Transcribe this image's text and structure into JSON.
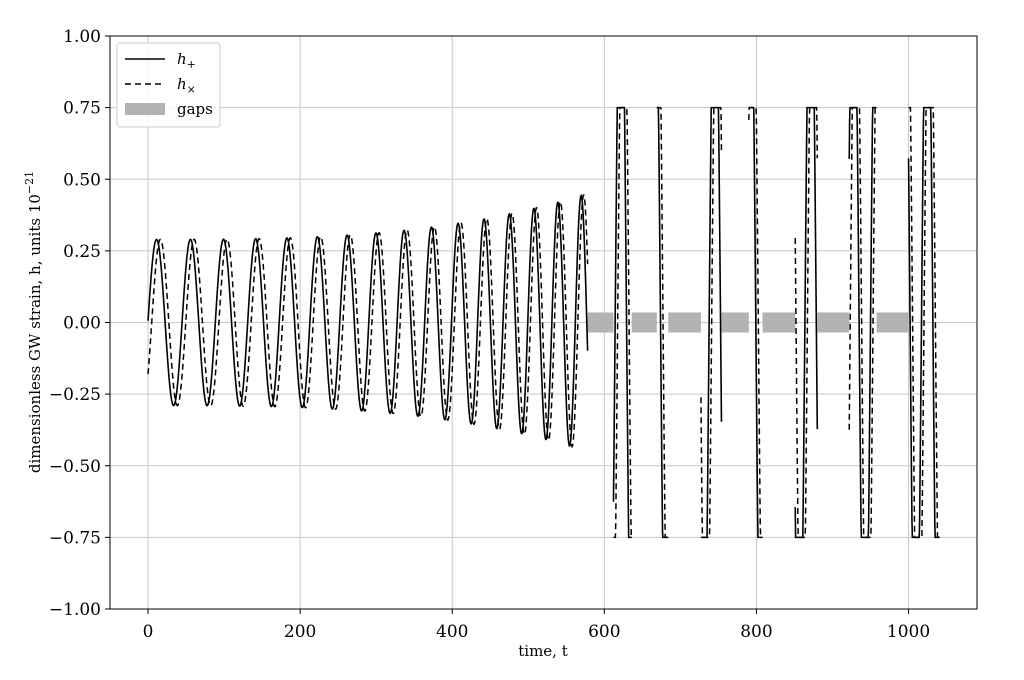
{
  "chart_data": {
    "type": "line",
    "xlabel": "time, t",
    "ylabel": "dimensionless GW strain, h, units 10",
    "ylabel_exponent": "−21",
    "xlim": [
      -50,
      1090
    ],
    "ylim": [
      -1.0,
      1.0
    ],
    "xticks": [
      0,
      200,
      400,
      600,
      800,
      1000
    ],
    "yticks": [
      -1.0,
      -0.75,
      -0.5,
      -0.25,
      0.0,
      0.25,
      0.5,
      0.75,
      1.0
    ],
    "xtick_labels": [
      "0",
      "200",
      "400",
      "600",
      "800",
      "1000"
    ],
    "ytick_labels": [
      "−1.00",
      "−0.75",
      "−0.50",
      "−0.25",
      "0.00",
      "0.25",
      "0.50",
      "0.75",
      "1.00"
    ],
    "grid": true,
    "legend_position": "top-left",
    "clip_range": [
      -0.75,
      0.75
    ],
    "legend": [
      {
        "label": "h",
        "sub": "+",
        "style": "solid"
      },
      {
        "label": "h",
        "sub": "×",
        "style": "dashed"
      },
      {
        "label": "gaps",
        "sub": "",
        "style": "band"
      }
    ],
    "colors": {
      "h_plus": "#000000",
      "h_cross": "#000000",
      "gaps": "#b3b3b3",
      "grid": "#c8c8c8"
    },
    "gaps": [
      {
        "start": 578,
        "end": 612
      },
      {
        "start": 636,
        "end": 669
      },
      {
        "start": 684,
        "end": 727
      },
      {
        "start": 754,
        "end": 790
      },
      {
        "start": 808,
        "end": 851
      },
      {
        "start": 880,
        "end": 922
      },
      {
        "start": 958,
        "end": 1000
      }
    ],
    "gap_band_halfheight": 0.035,
    "segments": [
      {
        "start": 0,
        "end": 578,
        "phase": 0.0
      },
      {
        "start": 612,
        "end": 636,
        "phase": 5.8
      },
      {
        "start": 669,
        "end": 684,
        "phase": 2.1
      },
      {
        "start": 727,
        "end": 754,
        "phase": 4.0
      },
      {
        "start": 790,
        "end": 808,
        "phase": 1.2
      },
      {
        "start": 851,
        "end": 880,
        "phase": 3.6
      },
      {
        "start": 922,
        "end": 958,
        "phase": 0.4
      },
      {
        "start": 1000,
        "end": 1041,
        "phase": 2.7
      }
    ],
    "h_plus": {
      "name": "h+",
      "period_start": 45.5,
      "period_end": 30.0,
      "amplitude_start": 0.29,
      "amplitude_end": 0.45,
      "x0": 0
    },
    "h_cross": {
      "name": "h×",
      "phase_lag": 0.9
    }
  }
}
